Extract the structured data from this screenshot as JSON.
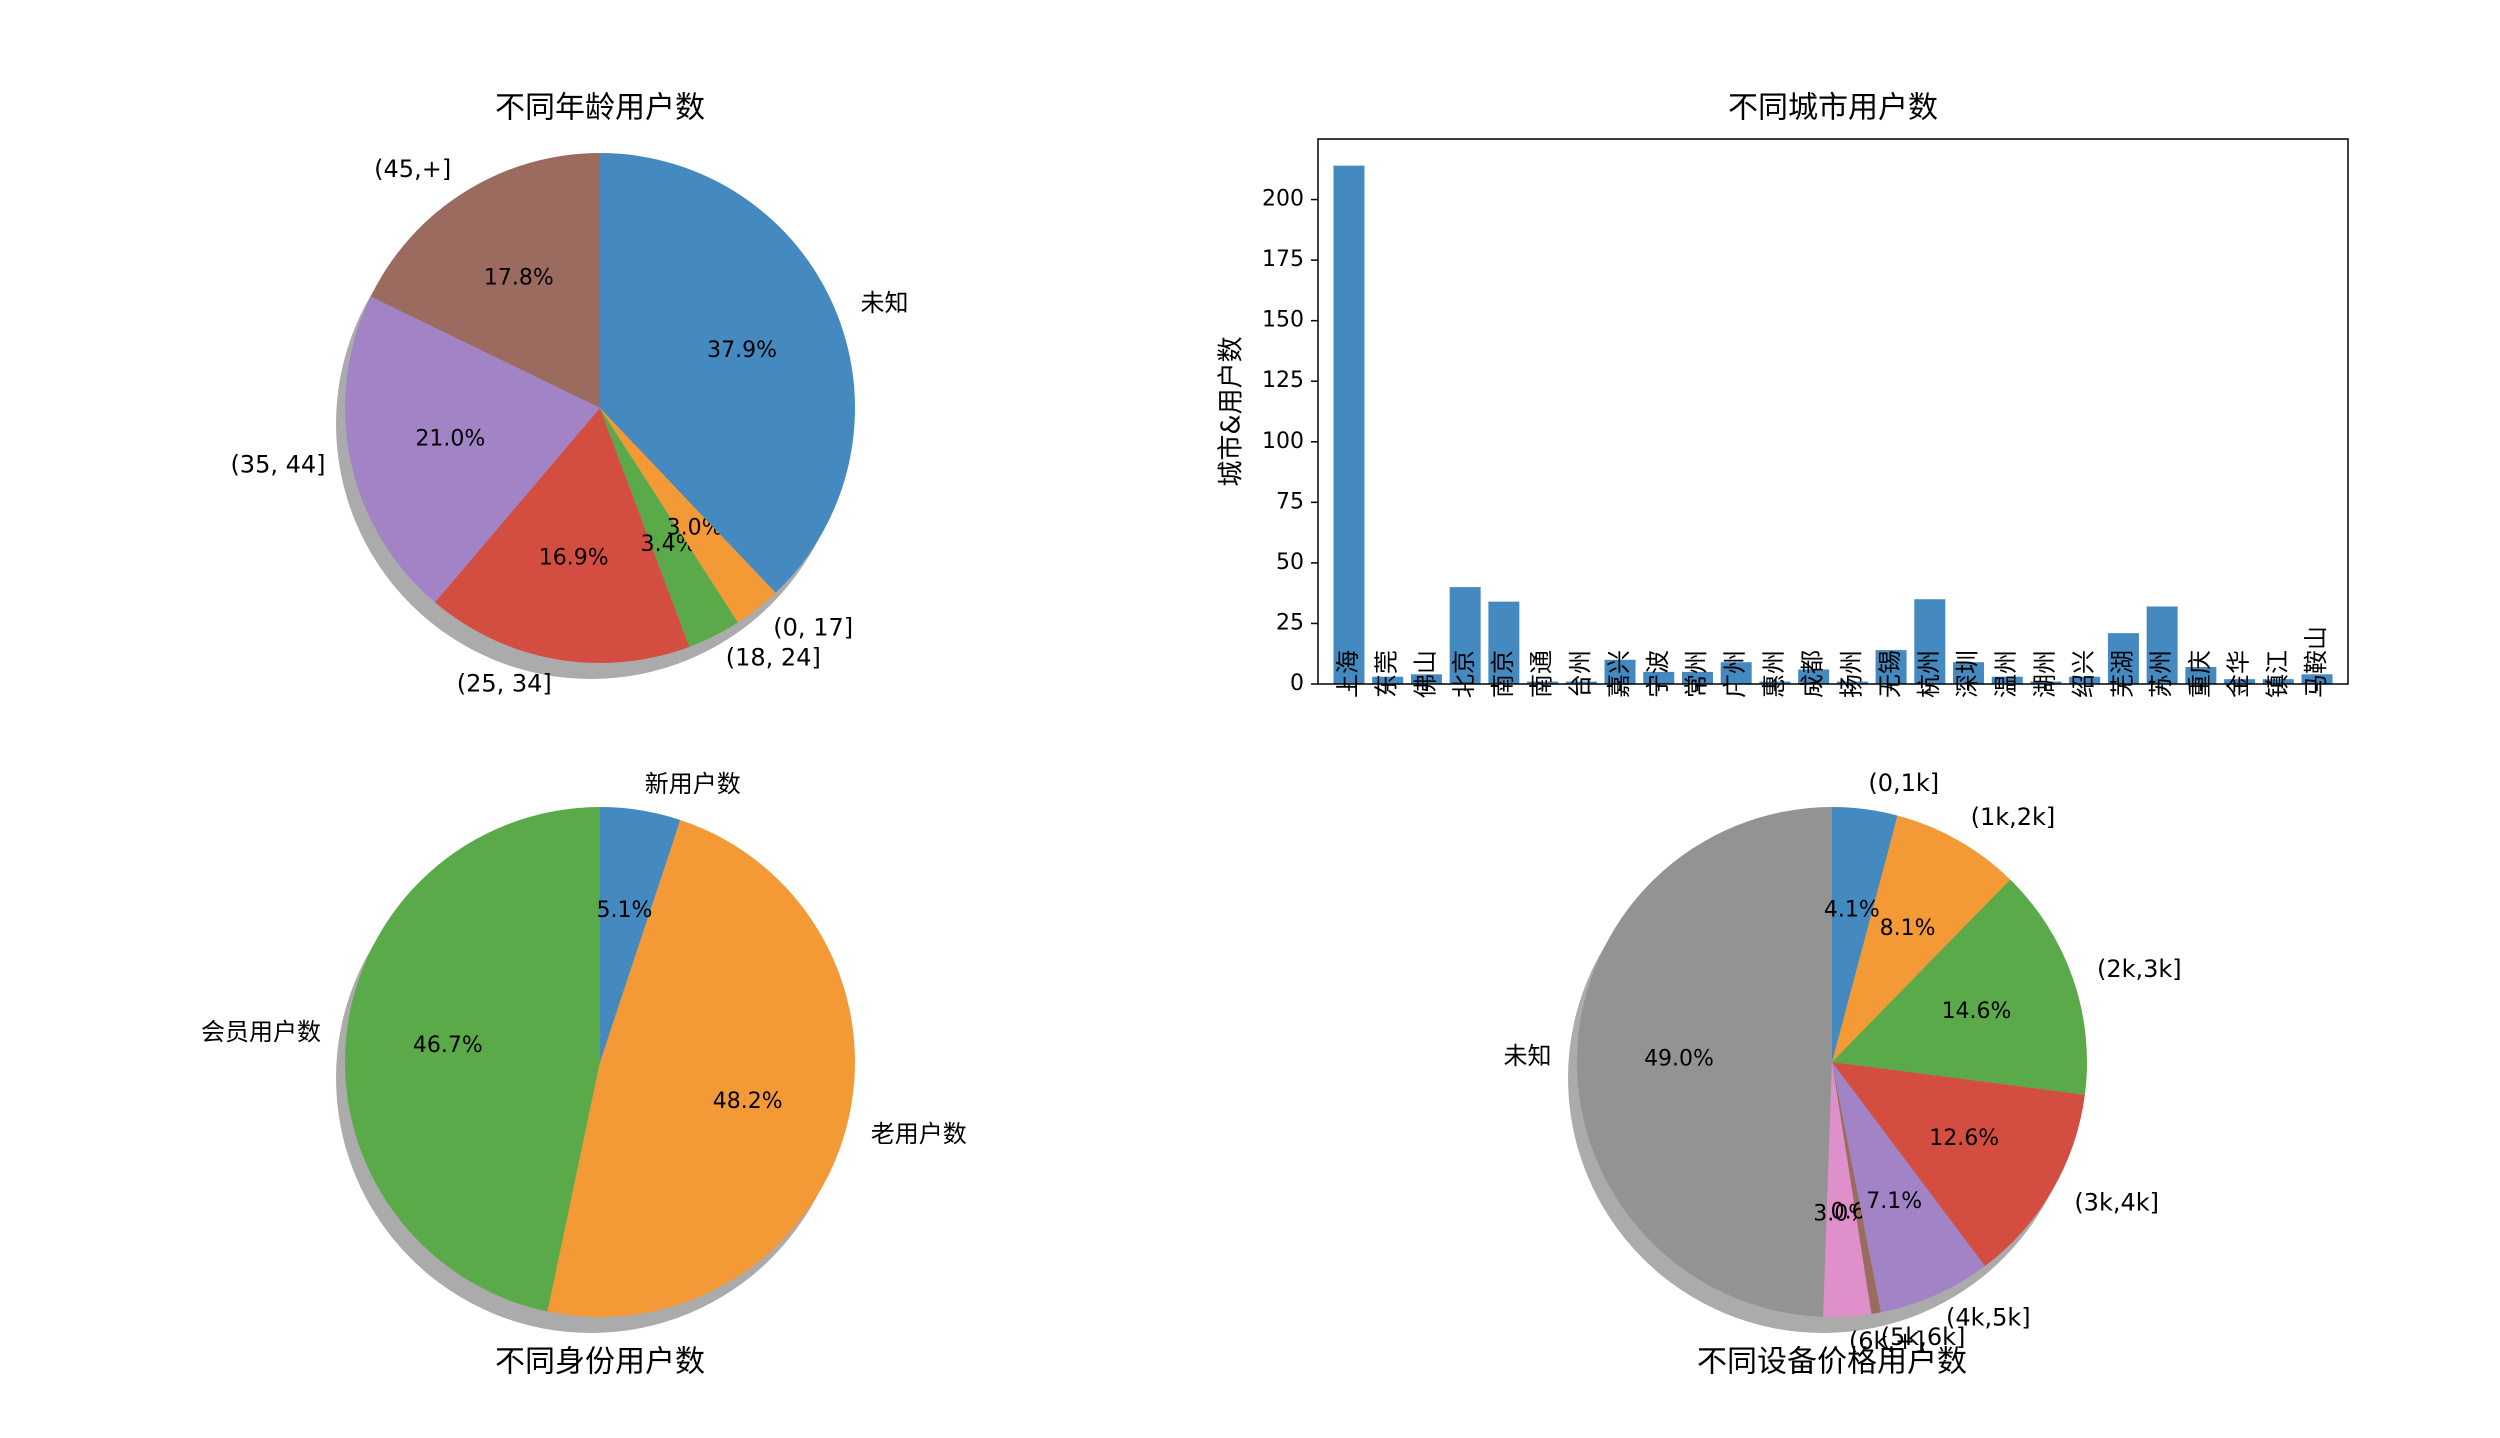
{
  "chart_data": [
    {
      "type": "pie",
      "title": "不同年龄用户数",
      "labels": [
        "(45,+]",
        "(35, 44]",
        "(25, 34]",
        "(18, 24]",
        "(0, 17]",
        "未知"
      ],
      "values": [
        17.8,
        21.0,
        16.9,
        3.4,
        3.0,
        37.9
      ],
      "pct_labels": [
        "17.8%",
        "21.0%",
        "16.9%",
        "3.4%",
        "3.0%",
        "37.9%"
      ],
      "colors": [
        "#9a6b5e",
        "#a283c6",
        "#d34e40",
        "#5aaa4a",
        "#f39a36",
        "#4489bf"
      ],
      "title_position": "top",
      "shadow": true
    },
    {
      "type": "bar",
      "title": "不同城市用户数",
      "ylabel": "城市&用户数",
      "xlabel": "",
      "categories": [
        "上海",
        "东莞",
        "佛山",
        "北京",
        "南京",
        "南通",
        "台州",
        "嘉兴",
        "宁波",
        "常州",
        "广州",
        "惠州",
        "成都",
        "扬州",
        "无锡",
        "杭州",
        "深圳",
        "温州",
        "湖州",
        "绍兴",
        "芜湖",
        "苏州",
        "重庆",
        "金华",
        "镇江",
        "马鞍山"
      ],
      "values": [
        214,
        3,
        4,
        40,
        34,
        1,
        1,
        10,
        5,
        5,
        9,
        1,
        6,
        1,
        14,
        35,
        9,
        3,
        1,
        3,
        21,
        32,
        7,
        2,
        2,
        4
      ],
      "ylim": [
        0,
        225
      ],
      "yticks": [
        0,
        25,
        50,
        75,
        100,
        125,
        150,
        175,
        200
      ],
      "color": "#4489bf",
      "grid": false
    },
    {
      "type": "pie",
      "title": "不同身份用户数",
      "labels": [
        "会员用户数",
        "老用户数",
        "新用户数"
      ],
      "values": [
        46.7,
        48.2,
        5.1
      ],
      "pct_labels": [
        "46.7%",
        "48.2%",
        "5.1%"
      ],
      "colors": [
        "#5aaa4a",
        "#f39a36",
        "#4489bf"
      ],
      "title_position": "bottom",
      "shadow": true
    },
    {
      "type": "pie",
      "title": "不同设备价格用户数",
      "labels": [
        "未知",
        "(6k,+]",
        "(5k,6k]",
        "(4k,5k]",
        "(3k,4k]",
        "(2k,3k]",
        "(1k,2k]",
        "(0,1k]"
      ],
      "values": [
        49.0,
        3.0,
        0.6,
        7.1,
        12.6,
        14.6,
        8.1,
        4.1
      ],
      "pct_labels": [
        "49.0%",
        "3.0%",
        "0.6%",
        "7.1%",
        "12.6%",
        "14.6%",
        "8.1%",
        "4.1%"
      ],
      "colors": [
        "#939393",
        "#df8fc9",
        "#9a6b5e",
        "#a283c6",
        "#d34e40",
        "#5aaa4a",
        "#f39a36",
        "#4489bf"
      ],
      "title_position": "bottom",
      "shadow": true
    }
  ]
}
